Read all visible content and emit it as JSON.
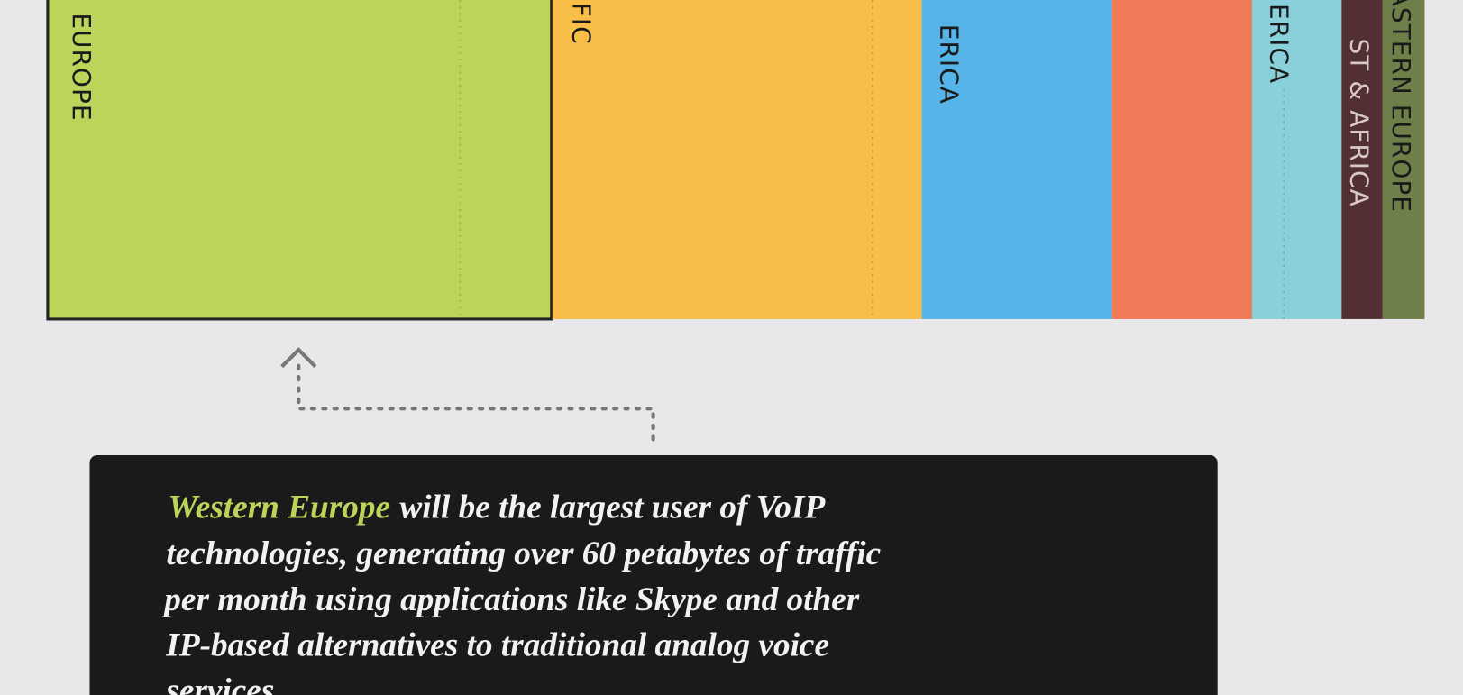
{
  "segment_labels": [
    "EUROPE",
    "FIC",
    "ERICA",
    "ERICA",
    "ST & AFRICA",
    "ASTERN EUROPE"
  ],
  "callout": {
    "highlight": "Western Europe",
    "lines": [
      "will be the largest user of VoIP",
      "technologies, generating over 60 petabytes of traffic",
      "per month using applications like Skype and other",
      "IP-based alternatives to traditional analog voice",
      "services."
    ]
  }
}
